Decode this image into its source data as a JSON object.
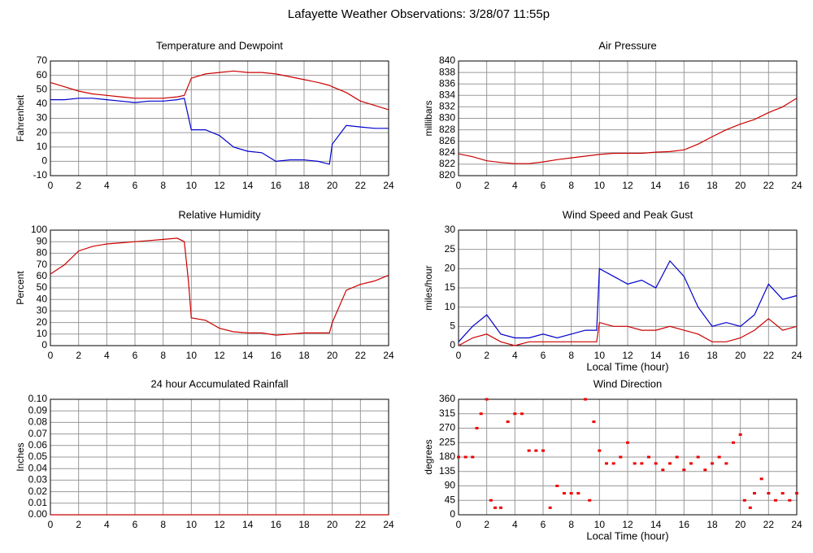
{
  "title": "Lafayette Weather Observations: 3/28/07 11:55p",
  "chart_data": [
    {
      "type": "line",
      "title": "Temperature and Dewpoint",
      "ylabel": "Fahrenheit",
      "x": [
        0,
        1,
        2,
        3,
        4,
        5,
        6,
        7,
        8,
        9,
        9.5,
        10,
        11,
        12,
        13,
        14,
        15,
        16,
        17,
        18,
        19,
        19.8,
        20,
        21,
        22,
        23,
        24
      ],
      "series": [
        {
          "color": "#cc0000",
          "values": [
            55,
            52,
            49,
            47,
            46,
            45,
            44,
            44,
            44,
            45,
            46,
            58,
            61,
            62,
            63,
            62,
            62,
            61,
            59,
            57,
            55,
            53,
            52,
            48,
            42,
            39,
            36
          ]
        },
        {
          "color": "#0000cc",
          "values": [
            43,
            43,
            44,
            44,
            43,
            42,
            41,
            42,
            42,
            43,
            44,
            22,
            22,
            18,
            10,
            7,
            6,
            0,
            1,
            1,
            0,
            -2,
            12,
            25,
            24,
            23,
            23
          ]
        }
      ],
      "xlim": [
        0,
        24
      ],
      "xticks": [
        0,
        2,
        4,
        6,
        8,
        10,
        12,
        14,
        16,
        18,
        20,
        22,
        24
      ],
      "ylim": [
        -10,
        70
      ],
      "yticks": [
        -10,
        0,
        10,
        20,
        30,
        40,
        50,
        60,
        70
      ],
      "grid": true
    },
    {
      "type": "line",
      "title": "Air Pressure",
      "ylabel": "millibars",
      "x": [
        0,
        1,
        2,
        3,
        4,
        5,
        6,
        7,
        8,
        9,
        10,
        11,
        12,
        13,
        14,
        15,
        16,
        17,
        18,
        19,
        20,
        21,
        22,
        23,
        24
      ],
      "series": [
        {
          "color": "#cc0000",
          "values": [
            823.8,
            823.3,
            822.6,
            822.3,
            822.1,
            822.1,
            822.4,
            822.8,
            823.1,
            823.4,
            823.7,
            823.9,
            823.9,
            823.9,
            824.1,
            824.2,
            824.5,
            825.5,
            826.8,
            828,
            829,
            829.8,
            831,
            832,
            833.5
          ]
        }
      ],
      "xlim": [
        0,
        24
      ],
      "xticks": [
        0,
        2,
        4,
        6,
        8,
        10,
        12,
        14,
        16,
        18,
        20,
        22,
        24
      ],
      "ylim": [
        820,
        840
      ],
      "yticks": [
        820,
        822,
        824,
        826,
        828,
        830,
        832,
        834,
        836,
        838,
        840
      ],
      "grid": true
    },
    {
      "type": "line",
      "title": "Relative Humidity",
      "ylabel": "Percent",
      "x": [
        0,
        1,
        2,
        3,
        4,
        5,
        6,
        7,
        8,
        9,
        9.5,
        9.8,
        10,
        11,
        12,
        13,
        14,
        15,
        16,
        17,
        18,
        19,
        19.8,
        20,
        21,
        22,
        23,
        24
      ],
      "series": [
        {
          "color": "#cc0000",
          "values": [
            62,
            70,
            82,
            86,
            88,
            89,
            90,
            91,
            92,
            93,
            90,
            55,
            24,
            22,
            15,
            12,
            11,
            11,
            9,
            10,
            11,
            11,
            11,
            20,
            48,
            53,
            56,
            61
          ]
        }
      ],
      "xlim": [
        0,
        24
      ],
      "xticks": [
        0,
        2,
        4,
        6,
        8,
        10,
        12,
        14,
        16,
        18,
        20,
        22,
        24
      ],
      "ylim": [
        0,
        100
      ],
      "yticks": [
        0,
        10,
        20,
        30,
        40,
        50,
        60,
        70,
        80,
        90,
        100
      ],
      "grid": true
    },
    {
      "type": "line",
      "title": "Wind Speed and Peak Gust",
      "ylabel": "miles/hour",
      "xlabel": "Local Time (hour)",
      "x": [
        0,
        1,
        2,
        3,
        4,
        5,
        6,
        7,
        8,
        9,
        9.8,
        10,
        11,
        12,
        13,
        14,
        15,
        16,
        17,
        18,
        19,
        20,
        21,
        22,
        23,
        24
      ],
      "series": [
        {
          "color": "#0000cc",
          "values": [
            1,
            5,
            8,
            3,
            2,
            2,
            3,
            2,
            3,
            4,
            4,
            20,
            18,
            16,
            17,
            15,
            22,
            18,
            10,
            5,
            6,
            5,
            8,
            16,
            12,
            13
          ]
        },
        {
          "color": "#cc0000",
          "values": [
            0,
            2,
            3,
            1,
            0,
            1,
            1,
            1,
            1,
            1,
            1,
            6,
            5,
            5,
            4,
            4,
            5,
            4,
            3,
            1,
            1,
            2,
            4,
            7,
            4,
            5
          ]
        }
      ],
      "xlim": [
        0,
        24
      ],
      "xticks": [
        0,
        2,
        4,
        6,
        8,
        10,
        12,
        14,
        16,
        18,
        20,
        22,
        24
      ],
      "ylim": [
        0,
        30
      ],
      "yticks": [
        0,
        5,
        10,
        15,
        20,
        25,
        30
      ],
      "grid": true
    },
    {
      "type": "line",
      "title": "24 hour Accumulated Rainfall",
      "ylabel": "Inches",
      "x": [
        0,
        24
      ],
      "series": [
        {
          "color": "#cc0000",
          "values": [
            0,
            0
          ]
        }
      ],
      "xlim": [
        0,
        24
      ],
      "xticks": [
        0,
        2,
        4,
        6,
        8,
        10,
        12,
        14,
        16,
        18,
        20,
        22,
        24
      ],
      "ylim": [
        0,
        0.1
      ],
      "yticks": [
        {
          "value": 0,
          "label": "0.00"
        },
        {
          "value": 0.01,
          "label": "0.01"
        },
        {
          "value": 0.02,
          "label": "0.02"
        },
        {
          "value": 0.03,
          "label": "0.03"
        },
        {
          "value": 0.04,
          "label": "0.04"
        },
        {
          "value": 0.05,
          "label": "0.05"
        },
        {
          "value": 0.06,
          "label": "0.06"
        },
        {
          "value": 0.07,
          "label": "0.07"
        },
        {
          "value": 0.08,
          "label": "0.08"
        },
        {
          "value": 0.09,
          "label": "0.09"
        },
        {
          "value": 0.1,
          "label": "0.10"
        }
      ],
      "grid": true
    },
    {
      "type": "scatter",
      "title": "Wind Direction",
      "ylabel": "degrees",
      "xlabel": "Local Time (hour)",
      "x": [
        0,
        0.5,
        1,
        1.3,
        1.6,
        2,
        2.3,
        2.6,
        3,
        3.5,
        4,
        4.5,
        5,
        5.5,
        6,
        6.5,
        7,
        7.5,
        8,
        8.5,
        9,
        9.3,
        9.6,
        10,
        10.5,
        11,
        11.5,
        12,
        12.5,
        13,
        13.5,
        14,
        14.5,
        15,
        15.5,
        16,
        16.5,
        17,
        17.5,
        18,
        18.5,
        19,
        19.5,
        20,
        20.3,
        20.7,
        21,
        21.5,
        22,
        22.5,
        23,
        23.5,
        24
      ],
      "series": [
        {
          "color": "#ee0000",
          "values": [
            180,
            180,
            180,
            270,
            315,
            360,
            45,
            22,
            22,
            290,
            315,
            315,
            200,
            200,
            200,
            22,
            90,
            67,
            67,
            67,
            360,
            45,
            290,
            200,
            160,
            160,
            180,
            225,
            160,
            160,
            180,
            160,
            140,
            160,
            180,
            140,
            160,
            180,
            140,
            160,
            180,
            160,
            225,
            250,
            45,
            22,
            67,
            112,
            67,
            45,
            67,
            45,
            67
          ]
        }
      ],
      "xlim": [
        0,
        24
      ],
      "xticks": [
        0,
        2,
        4,
        6,
        8,
        10,
        12,
        14,
        16,
        18,
        20,
        22,
        24
      ],
      "ylim": [
        0,
        360
      ],
      "yticks": [
        0,
        45,
        90,
        135,
        180,
        225,
        270,
        315,
        360
      ],
      "grid": true
    }
  ]
}
